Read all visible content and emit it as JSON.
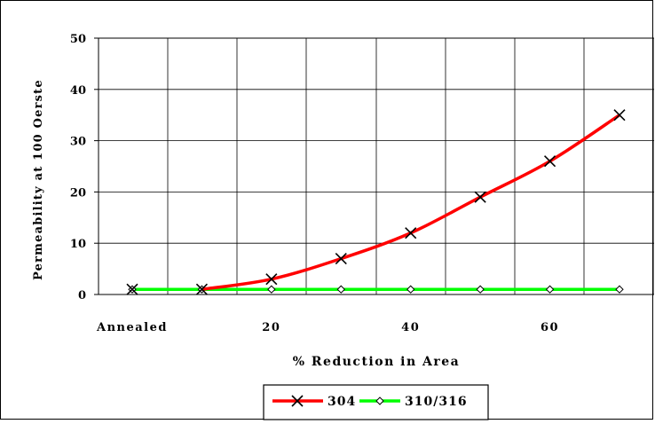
{
  "chart_data": {
    "type": "line",
    "title": "",
    "xlabel": "% Reduction in Area",
    "ylabel": "Permeability at 100 Oerste",
    "xlim": [
      0,
      70
    ],
    "ylim": [
      0,
      50
    ],
    "x_ticks": [
      {
        "value": 0,
        "label": "Annealed"
      },
      {
        "value": 20,
        "label": "20"
      },
      {
        "value": 40,
        "label": "40"
      },
      {
        "value": 60,
        "label": "60"
      }
    ],
    "y_ticks": [
      0,
      10,
      20,
      30,
      40,
      50
    ],
    "grid": true,
    "legend_position": "bottom-center",
    "series": [
      {
        "name": "304",
        "color": "#ff0000",
        "marker": "x-cross",
        "x": [
          0,
          10,
          20,
          30,
          40,
          50,
          60,
          70
        ],
        "y": [
          1,
          1,
          3,
          7,
          12,
          19,
          26,
          35
        ]
      },
      {
        "name": "310/316",
        "color": "#00ff00",
        "marker": "diamond",
        "x": [
          0,
          10,
          20,
          30,
          40,
          50,
          60,
          70
        ],
        "y": [
          1,
          1,
          1,
          1,
          1,
          1,
          1,
          1
        ]
      }
    ]
  }
}
